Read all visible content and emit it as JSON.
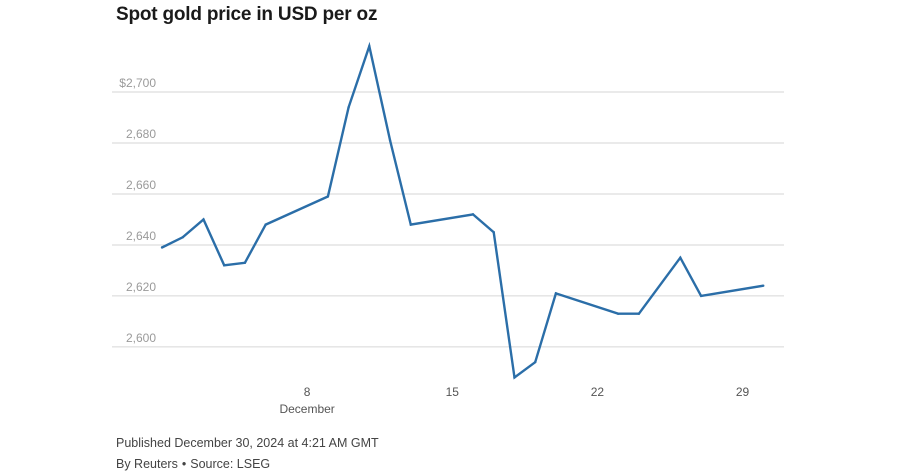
{
  "title": "Spot gold price in USD per oz",
  "footer": {
    "published": "Published December 30, 2024 at 4:21 AM GMT",
    "byline_author": "By Reuters",
    "byline_sep": "•",
    "byline_source": "Source: LSEG"
  },
  "colors": {
    "line": "#2b6ea8",
    "grid": "#d6d6d6",
    "tick_text": "#9a9a9a"
  },
  "chart_data": {
    "type": "line",
    "title": "Spot gold price in USD per oz",
    "x_unit": "date (December 2024)",
    "ylim": [
      2587,
      2722
    ],
    "xlim": [
      1,
      31
    ],
    "y_ticks": [
      2600,
      2620,
      2640,
      2660,
      2680,
      2700
    ],
    "y_tick_labels": [
      "2,600",
      "2,620",
      "2,640",
      "2,660",
      "2,680",
      "$2,700"
    ],
    "x_ticks": [
      8,
      15,
      22,
      29
    ],
    "x_tick_labels": [
      "8",
      "15",
      "22",
      "29"
    ],
    "x_sublabel": {
      "at": 8,
      "text": "December"
    },
    "grid": true,
    "series": [
      {
        "x": [
          1,
          2,
          3,
          4,
          5,
          6,
          9,
          10,
          11,
          12,
          13,
          16,
          17,
          18,
          19,
          20,
          23,
          24,
          26,
          27,
          30
        ],
        "y": [
          2639,
          2643,
          2650,
          2632,
          2633,
          2648,
          2659,
          2694,
          2718,
          2681,
          2648,
          2652,
          2645,
          2588,
          2594,
          2621,
          2613,
          2613,
          2635,
          2620,
          2624
        ]
      }
    ]
  }
}
